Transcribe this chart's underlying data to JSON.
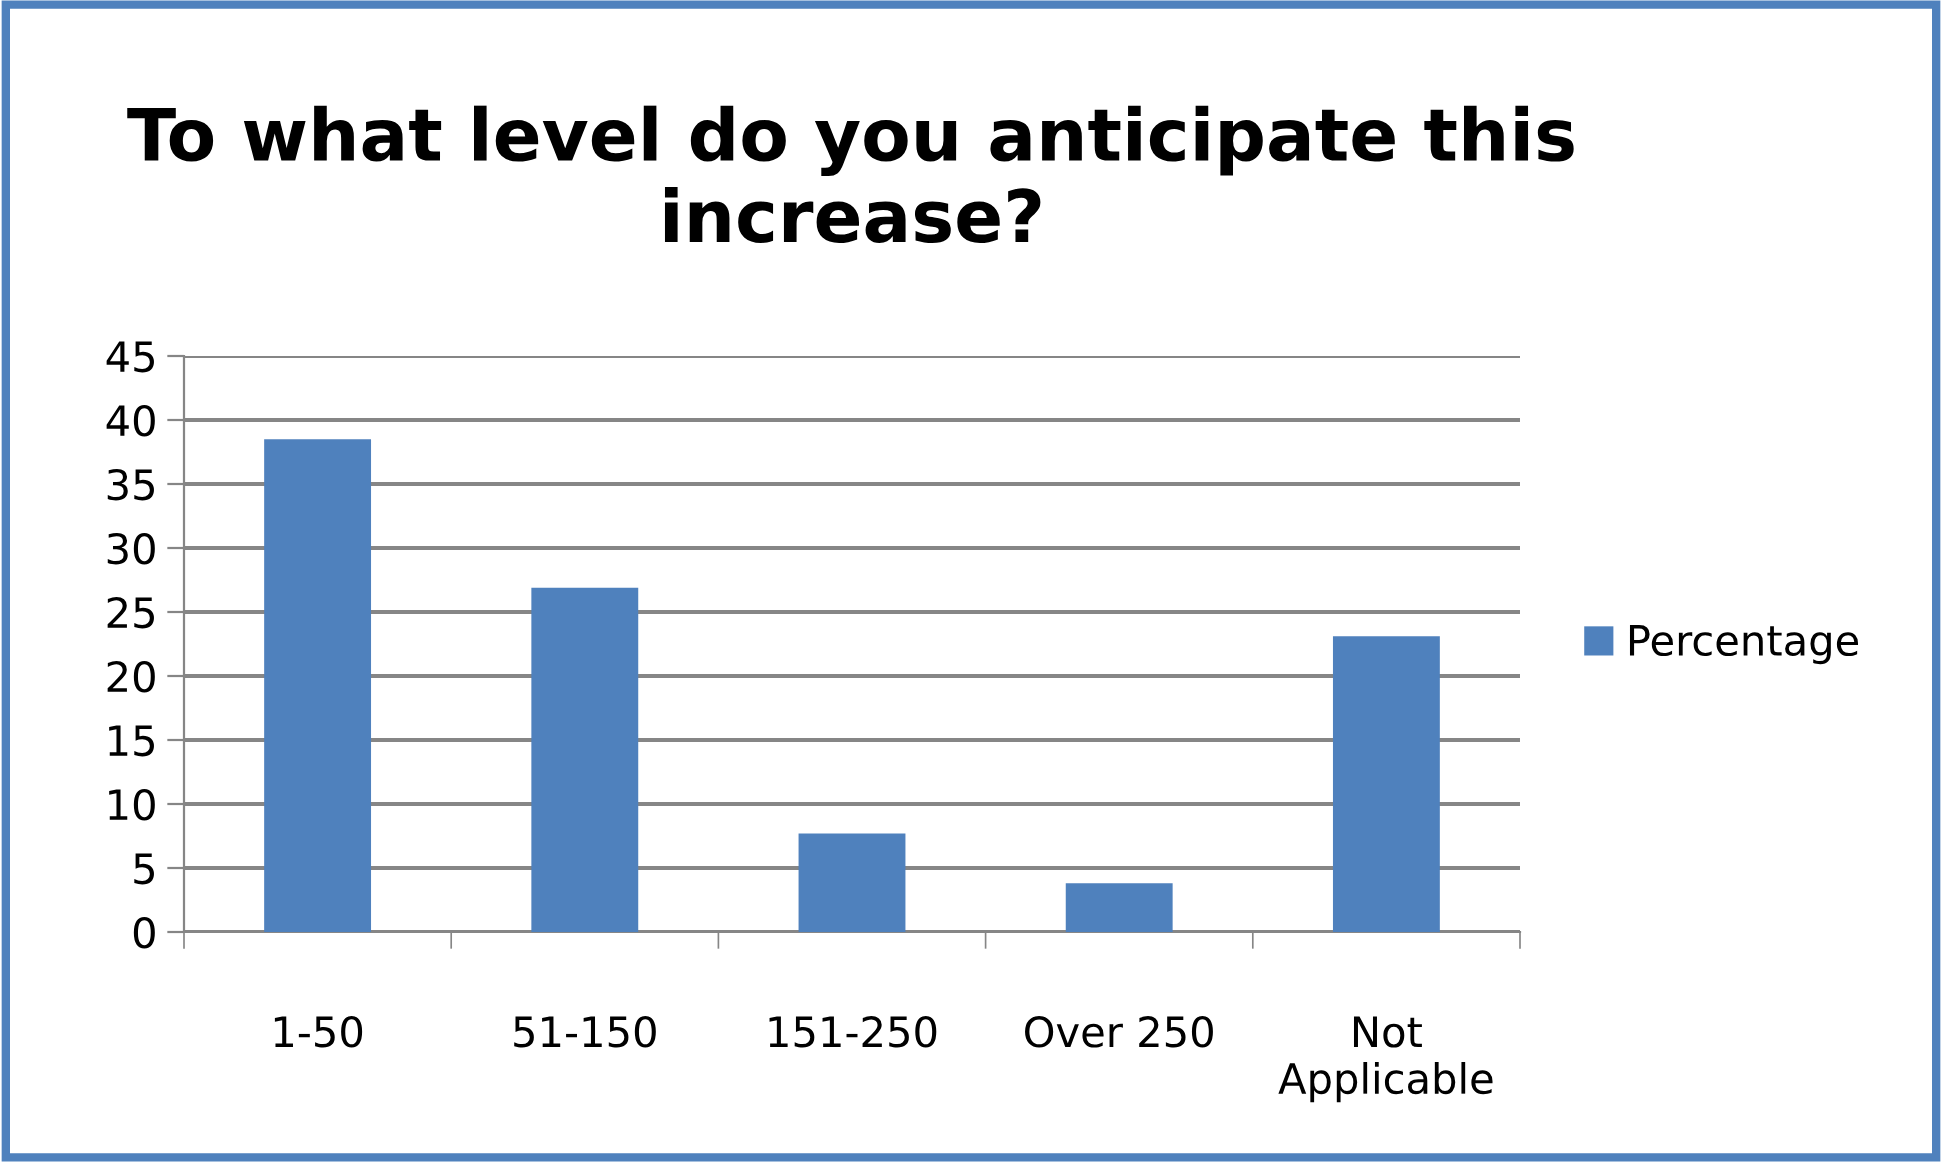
{
  "chart_data": {
    "type": "bar",
    "title": "To what level do you anticipate this increase?",
    "categories": [
      "1-50",
      "51-150",
      "151-250",
      "Over 250",
      "Not\nApplicable"
    ],
    "series": [
      {
        "name": "Percentage",
        "color": "#4f81bd",
        "values": [
          38.5,
          26.9,
          7.7,
          3.8,
          23.1
        ]
      }
    ],
    "ylim": [
      0,
      45
    ],
    "yticks": [
      0,
      5,
      10,
      15,
      20,
      25,
      30,
      35,
      40,
      45
    ],
    "grid": "y",
    "legend": "right"
  }
}
